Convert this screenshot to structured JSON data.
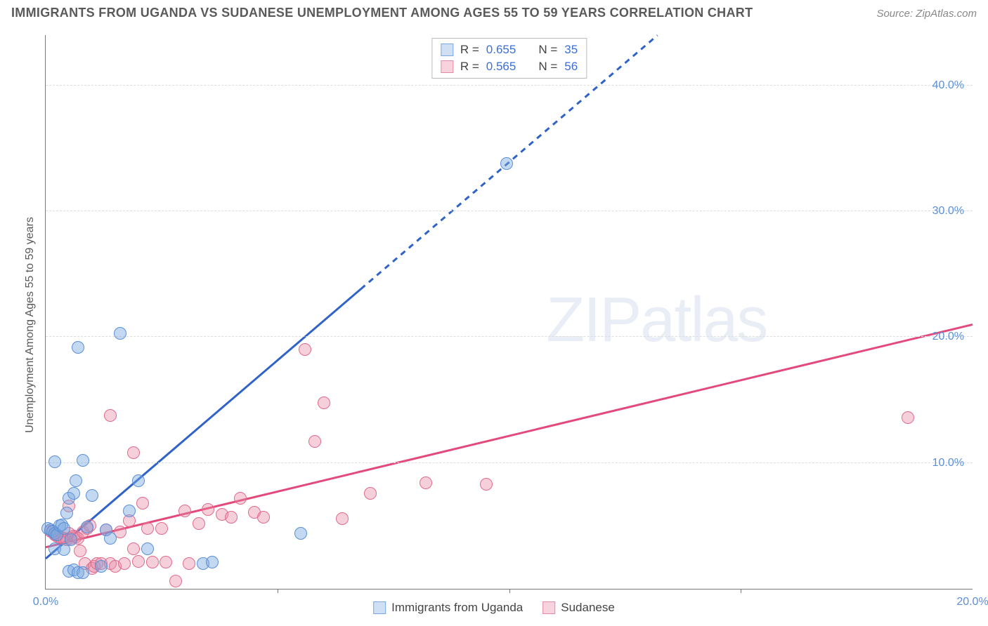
{
  "header": {
    "title": "IMMIGRANTS FROM UGANDA VS SUDANESE UNEMPLOYMENT AMONG AGES 55 TO 59 YEARS CORRELATION CHART",
    "source": "Source: ZipAtlas.com"
  },
  "axes": {
    "ylabel": "Unemployment Among Ages 55 to 59 years",
    "x_min": 0.0,
    "x_max": 20.0,
    "y_min": 0.0,
    "y_max": 44.0,
    "x_ticks": [
      0.0,
      20.0
    ],
    "x_tick_labels": [
      "0.0%",
      "20.0%"
    ],
    "x_gridmarks": [
      5.0,
      10.0,
      15.0
    ],
    "y_ticks": [
      10.0,
      20.0,
      30.0,
      40.0
    ],
    "y_tick_labels": [
      "10.0%",
      "20.0%",
      "30.0%",
      "40.0%"
    ],
    "grid_color": "#dddddd",
    "tick_color": "#5b8fd6",
    "axis_color": "#777777"
  },
  "legend_top": {
    "rows": [
      {
        "swatch_fill": "#cfe0f4",
        "swatch_border": "#7aa9e0",
        "r_label": "R =",
        "r_value": "0.655",
        "n_label": "N =",
        "n_value": "35"
      },
      {
        "swatch_fill": "#f7d3dd",
        "swatch_border": "#e48aa4",
        "r_label": "R =",
        "r_value": "0.565",
        "n_label": "N =",
        "n_value": "56"
      }
    ]
  },
  "legend_bottom": {
    "items": [
      {
        "swatch_fill": "#cfe0f4",
        "swatch_border": "#7aa9e0",
        "label": "Immigrants from Uganda"
      },
      {
        "swatch_fill": "#f7d3dd",
        "swatch_border": "#e48aa4",
        "label": "Sudanese"
      }
    ]
  },
  "watermark": {
    "part1": "ZIP",
    "part2": "atlas"
  },
  "series": {
    "uganda": {
      "color_fill": "rgba(122,169,224,0.45)",
      "color_border": "#5b8fd6",
      "marker_r": 9,
      "trend": {
        "color": "#2f63c9",
        "width": 3,
        "slope": 3.15,
        "intercept": 2.4,
        "x_solid_end": 6.8,
        "x_dash_end": 13.2
      },
      "points": [
        [
          0.05,
          4.8
        ],
        [
          0.1,
          4.7
        ],
        [
          0.15,
          4.6
        ],
        [
          0.2,
          4.4
        ],
        [
          0.25,
          4.3
        ],
        [
          0.2,
          3.2
        ],
        [
          0.4,
          3.1
        ],
        [
          0.5,
          1.4
        ],
        [
          0.6,
          1.5
        ],
        [
          0.7,
          1.3
        ],
        [
          0.8,
          1.3
        ],
        [
          0.5,
          7.2
        ],
        [
          0.6,
          7.6
        ],
        [
          0.65,
          8.6
        ],
        [
          0.2,
          10.1
        ],
        [
          0.8,
          10.2
        ],
        [
          1.0,
          7.4
        ],
        [
          1.2,
          1.8
        ],
        [
          1.3,
          4.7
        ],
        [
          1.4,
          4.0
        ],
        [
          0.3,
          5.0
        ],
        [
          0.35,
          5.1
        ],
        [
          0.4,
          4.8
        ],
        [
          1.8,
          6.2
        ],
        [
          2.0,
          8.6
        ],
        [
          2.2,
          3.2
        ],
        [
          3.4,
          2.0
        ],
        [
          3.6,
          2.1
        ],
        [
          0.7,
          19.2
        ],
        [
          1.6,
          20.3
        ],
        [
          5.5,
          4.4
        ],
        [
          9.95,
          33.8
        ],
        [
          0.9,
          4.9
        ],
        [
          0.45,
          6.0
        ],
        [
          0.55,
          3.9
        ]
      ]
    },
    "sudanese": {
      "color_fill": "rgba(231,138,164,0.40)",
      "color_border": "#e06a8e",
      "marker_r": 9,
      "trend": {
        "color": "#e34a7b",
        "width": 3,
        "slope": 0.885,
        "intercept": 3.3,
        "x_solid_end": 20.0,
        "x_dash_end": 20.0
      },
      "points": [
        [
          0.1,
          4.6
        ],
        [
          0.15,
          4.5
        ],
        [
          0.2,
          4.3
        ],
        [
          0.25,
          4.2
        ],
        [
          0.3,
          4.1
        ],
        [
          0.35,
          4.0
        ],
        [
          0.4,
          4.0
        ],
        [
          0.45,
          3.9
        ],
        [
          0.5,
          4.4
        ],
        [
          0.55,
          4.0
        ],
        [
          0.6,
          4.2
        ],
        [
          0.65,
          4.1
        ],
        [
          0.7,
          4.0
        ],
        [
          0.75,
          3.0
        ],
        [
          0.8,
          4.5
        ],
        [
          0.85,
          2.0
        ],
        [
          0.9,
          4.8
        ],
        [
          0.95,
          5.0
        ],
        [
          1.0,
          1.6
        ],
        [
          1.05,
          1.8
        ],
        [
          1.1,
          2.0
        ],
        [
          1.2,
          2.0
        ],
        [
          1.3,
          4.7
        ],
        [
          1.4,
          2.0
        ],
        [
          1.5,
          1.8
        ],
        [
          1.6,
          4.5
        ],
        [
          1.7,
          2.0
        ],
        [
          1.8,
          5.4
        ],
        [
          1.9,
          3.2
        ],
        [
          2.0,
          2.2
        ],
        [
          2.1,
          6.8
        ],
        [
          2.2,
          4.8
        ],
        [
          2.3,
          2.1
        ],
        [
          2.5,
          4.8
        ],
        [
          2.6,
          2.1
        ],
        [
          2.8,
          0.6
        ],
        [
          3.0,
          6.2
        ],
        [
          3.1,
          2.0
        ],
        [
          3.3,
          5.2
        ],
        [
          3.5,
          6.3
        ],
        [
          3.8,
          5.9
        ],
        [
          4.0,
          5.7
        ],
        [
          4.2,
          7.2
        ],
        [
          4.5,
          6.1
        ],
        [
          4.7,
          5.7
        ],
        [
          6.4,
          5.6
        ],
        [
          1.9,
          10.8
        ],
        [
          1.4,
          13.8
        ],
        [
          5.8,
          11.7
        ],
        [
          6.0,
          14.8
        ],
        [
          5.6,
          19.0
        ],
        [
          8.2,
          8.4
        ],
        [
          7.0,
          7.6
        ],
        [
          9.5,
          8.3
        ],
        [
          18.6,
          13.6
        ],
        [
          0.5,
          6.6
        ]
      ]
    }
  },
  "style": {
    "background": "#ffffff",
    "title_color": "#5a5a5a",
    "title_fontsize": 18,
    "label_fontsize": 16,
    "tick_fontsize": 16
  }
}
